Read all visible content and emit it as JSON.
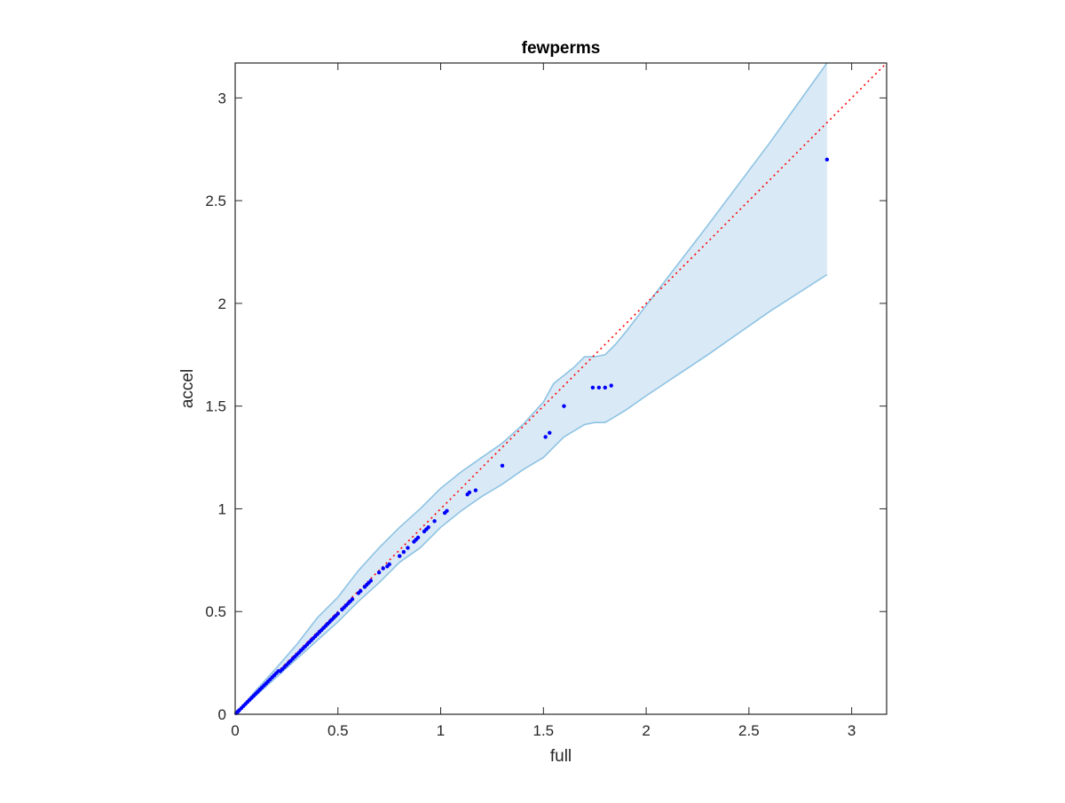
{
  "chart_data": {
    "type": "scatter",
    "title": "fewperms",
    "xlabel": "full",
    "ylabel": "accel",
    "xlim": [
      0,
      3.17
    ],
    "ylim": [
      0,
      3.17
    ],
    "xticks": [
      0,
      0.5,
      1,
      1.5,
      2,
      2.5,
      3
    ],
    "yticks": [
      0,
      0.5,
      1,
      1.5,
      2,
      2.5,
      3
    ],
    "xtick_labels": [
      "0",
      "0.5",
      "1",
      "1.5",
      "2",
      "2.5",
      "3"
    ],
    "ytick_labels": [
      "0",
      "0.5",
      "1",
      "1.5",
      "2",
      "2.5",
      "3"
    ],
    "grid": false,
    "colors": {
      "points": "#0000ff",
      "reference_line": "#ff0000",
      "band_fill": "#d9e9f5",
      "band_edge": "#8ec3e3",
      "axes": "#262626"
    },
    "series": [
      {
        "type": "scatter",
        "x": [
          0.005,
          0.01,
          0.015,
          0.02,
          0.03,
          0.04,
          0.05,
          0.06,
          0.07,
          0.08,
          0.09,
          0.1,
          0.11,
          0.12,
          0.13,
          0.14,
          0.15,
          0.16,
          0.17,
          0.18,
          0.19,
          0.2,
          0.21,
          0.22,
          0.23,
          0.24,
          0.25,
          0.26,
          0.27,
          0.28,
          0.29,
          0.3,
          0.31,
          0.32,
          0.33,
          0.34,
          0.35,
          0.36,
          0.37,
          0.38,
          0.39,
          0.4,
          0.41,
          0.42,
          0.43,
          0.44,
          0.45,
          0.46,
          0.47,
          0.48,
          0.49,
          0.5,
          0.52,
          0.53,
          0.54,
          0.55,
          0.56,
          0.57,
          0.6,
          0.61,
          0.63,
          0.64,
          0.65,
          0.66,
          0.7,
          0.72,
          0.74,
          0.75,
          0.8,
          0.82,
          0.84,
          0.87,
          0.88,
          0.89,
          0.92,
          0.93,
          0.94,
          0.97,
          1.02,
          1.03,
          1.13,
          1.14,
          1.17,
          1.3,
          1.51,
          1.53,
          1.6,
          1.74,
          1.77,
          1.8,
          1.83,
          2.88
        ],
        "y": [
          0.005,
          0.01,
          0.015,
          0.02,
          0.03,
          0.04,
          0.05,
          0.06,
          0.07,
          0.08,
          0.09,
          0.1,
          0.11,
          0.12,
          0.13,
          0.14,
          0.15,
          0.16,
          0.17,
          0.18,
          0.19,
          0.2,
          0.21,
          0.21,
          0.22,
          0.23,
          0.24,
          0.25,
          0.26,
          0.27,
          0.28,
          0.29,
          0.3,
          0.31,
          0.32,
          0.33,
          0.34,
          0.35,
          0.36,
          0.37,
          0.38,
          0.39,
          0.4,
          0.41,
          0.42,
          0.43,
          0.44,
          0.45,
          0.46,
          0.47,
          0.48,
          0.49,
          0.51,
          0.52,
          0.53,
          0.54,
          0.55,
          0.56,
          0.59,
          0.6,
          0.62,
          0.63,
          0.64,
          0.65,
          0.69,
          0.71,
          0.72,
          0.73,
          0.77,
          0.79,
          0.81,
          0.84,
          0.85,
          0.86,
          0.89,
          0.9,
          0.91,
          0.94,
          0.98,
          0.99,
          1.07,
          1.08,
          1.09,
          1.21,
          1.35,
          1.37,
          1.5,
          1.59,
          1.59,
          1.59,
          1.6,
          2.7
        ]
      },
      {
        "type": "line",
        "style": "dotted",
        "x": [
          0,
          3.17
        ],
        "y": [
          0,
          3.17
        ]
      },
      {
        "type": "band",
        "x": [
          0,
          0.1,
          0.2,
          0.3,
          0.4,
          0.5,
          0.6,
          0.7,
          0.8,
          0.9,
          1.0,
          1.1,
          1.2,
          1.3,
          1.4,
          1.5,
          1.55,
          1.6,
          1.65,
          1.7,
          1.75,
          1.8,
          1.85,
          1.9,
          2.0,
          2.3,
          2.6,
          2.88
        ],
        "upper": [
          0,
          0.115,
          0.225,
          0.34,
          0.47,
          0.57,
          0.7,
          0.81,
          0.91,
          1.0,
          1.1,
          1.18,
          1.25,
          1.32,
          1.41,
          1.52,
          1.61,
          1.65,
          1.69,
          1.74,
          1.74,
          1.75,
          1.8,
          1.86,
          1.99,
          2.38,
          2.78,
          3.17
        ],
        "lower": [
          0,
          0.09,
          0.18,
          0.27,
          0.36,
          0.45,
          0.55,
          0.64,
          0.74,
          0.81,
          0.91,
          0.99,
          1.06,
          1.12,
          1.19,
          1.25,
          1.3,
          1.35,
          1.38,
          1.41,
          1.42,
          1.42,
          1.45,
          1.48,
          1.55,
          1.75,
          1.96,
          2.14
        ]
      }
    ]
  }
}
